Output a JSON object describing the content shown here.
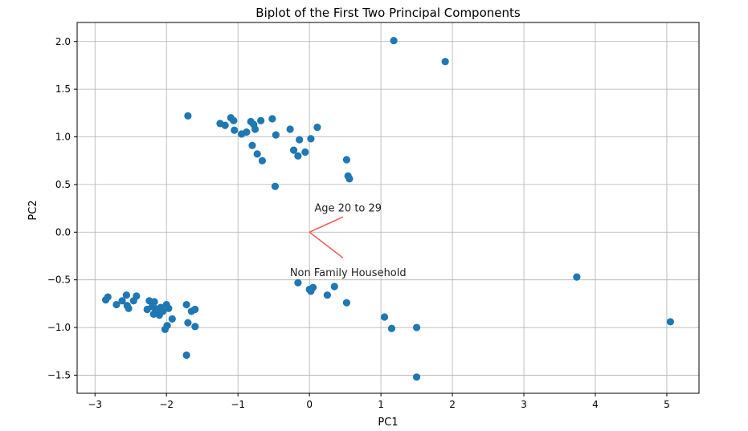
{
  "chart_data": {
    "type": "scatter",
    "title": "Biplot of the First Two Principal Components",
    "xlabel": "PC1",
    "ylabel": "PC2",
    "xlim": [
      -3.25,
      5.45
    ],
    "ylim": [
      -1.69,
      2.2
    ],
    "xticks": [
      -3,
      -2,
      -1,
      0,
      1,
      2,
      3,
      4,
      5
    ],
    "yticks": [
      -1.5,
      -1.0,
      -0.5,
      0.0,
      0.5,
      1.0,
      1.5,
      2.0
    ],
    "xtick_labels": [
      "−3",
      "−2",
      "−1",
      "0",
      "1",
      "2",
      "3",
      "4",
      "5"
    ],
    "ytick_labels": [
      "−1.5",
      "−1.0",
      "−0.5",
      "0.0",
      "0.5",
      "1.0",
      "1.5",
      "2.0"
    ],
    "grid": true,
    "point_color": "#1f77b4",
    "vector_color": "#f06060",
    "points": [
      [
        1.18,
        2.01
      ],
      [
        1.9,
        1.79
      ],
      [
        -1.7,
        1.22
      ],
      [
        -1.25,
        1.14
      ],
      [
        -1.18,
        1.12
      ],
      [
        -1.1,
        1.2
      ],
      [
        -1.06,
        1.17
      ],
      [
        -1.05,
        1.07
      ],
      [
        -0.95,
        1.03
      ],
      [
        -0.88,
        1.05
      ],
      [
        -0.82,
        1.16
      ],
      [
        -0.78,
        1.13
      ],
      [
        -0.76,
        1.08
      ],
      [
        -0.68,
        1.17
      ],
      [
        -0.52,
        1.19
      ],
      [
        -0.47,
        1.02
      ],
      [
        -0.27,
        1.08
      ],
      [
        -0.14,
        0.97
      ],
      [
        0.02,
        0.98
      ],
      [
        0.11,
        1.1
      ],
      [
        -0.8,
        0.91
      ],
      [
        -0.73,
        0.82
      ],
      [
        -0.66,
        0.75
      ],
      [
        -0.22,
        0.86
      ],
      [
        -0.16,
        0.8
      ],
      [
        -0.06,
        0.84
      ],
      [
        0.52,
        0.76
      ],
      [
        0.54,
        0.59
      ],
      [
        0.56,
        0.56
      ],
      [
        -0.48,
        0.48
      ],
      [
        -2.85,
        -0.71
      ],
      [
        -2.82,
        -0.68
      ],
      [
        -2.7,
        -0.76
      ],
      [
        -2.62,
        -0.72
      ],
      [
        -2.56,
        -0.66
      ],
      [
        -2.55,
        -0.77
      ],
      [
        -2.53,
        -0.8
      ],
      [
        -2.46,
        -0.72
      ],
      [
        -2.42,
        -0.67
      ],
      [
        -2.27,
        -0.81
      ],
      [
        -2.24,
        -0.72
      ],
      [
        -2.2,
        -0.78
      ],
      [
        -2.18,
        -0.86
      ],
      [
        -2.17,
        -0.73
      ],
      [
        -2.16,
        -0.8
      ],
      [
        -2.14,
        -0.84
      ],
      [
        -2.12,
        -0.81
      ],
      [
        -2.1,
        -0.87
      ],
      [
        -2.08,
        -0.79
      ],
      [
        -2.05,
        -0.83
      ],
      [
        -2.02,
        -1.02
      ],
      [
        -2.0,
        -0.76
      ],
      [
        -1.99,
        -0.98
      ],
      [
        -1.97,
        -0.8
      ],
      [
        -1.92,
        -0.91
      ],
      [
        -1.72,
        -0.76
      ],
      [
        -1.7,
        -0.95
      ],
      [
        -1.65,
        -0.83
      ],
      [
        -1.6,
        -0.81
      ],
      [
        -1.6,
        -0.99
      ],
      [
        -1.72,
        -1.29
      ],
      [
        -0.16,
        -0.53
      ],
      [
        0.0,
        -0.6
      ],
      [
        0.02,
        -0.62
      ],
      [
        0.05,
        -0.58
      ],
      [
        0.25,
        -0.66
      ],
      [
        0.35,
        -0.57
      ],
      [
        0.52,
        -0.74
      ],
      [
        1.05,
        -0.89
      ],
      [
        1.15,
        -1.01
      ],
      [
        1.5,
        -1.0
      ],
      [
        1.5,
        -1.52
      ],
      [
        3.74,
        -0.47
      ],
      [
        5.05,
        -0.94
      ]
    ],
    "vectors": [
      {
        "label": "Age 20 to 29",
        "x": 0.47,
        "y": 0.16
      },
      {
        "label": "Non Family Household",
        "x": 0.47,
        "y": -0.27
      }
    ]
  }
}
